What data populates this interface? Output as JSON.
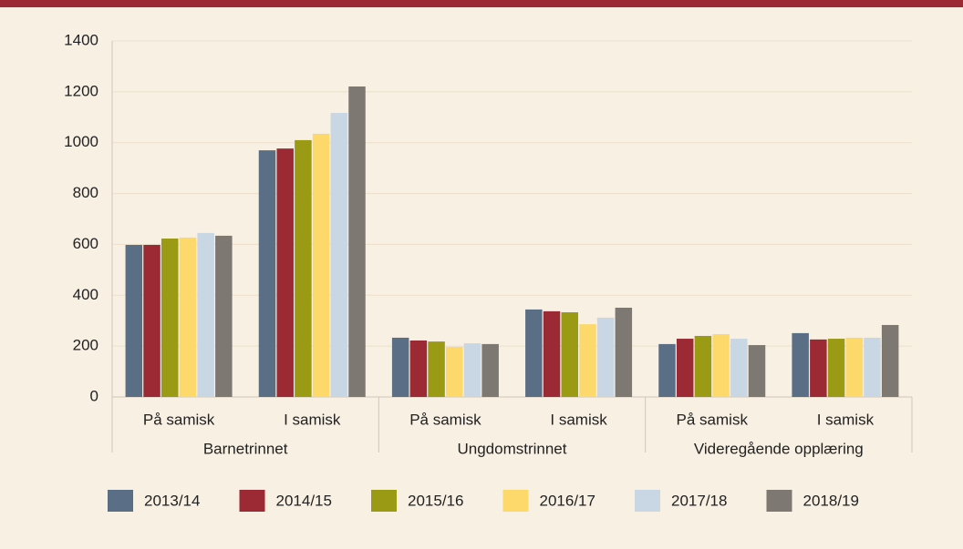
{
  "chart_data": {
    "type": "bar",
    "categories": [
      "På samisk",
      "I samisk",
      "På samisk",
      "I samisk",
      "På samisk",
      "I samisk"
    ],
    "groups": [
      "Barnetrinnet",
      "Ungdomstrinnet",
      "Videregående opplæring"
    ],
    "series": [
      {
        "name": "2013/14",
        "color": "#5a6e85",
        "values": [
          598,
          970,
          233,
          344,
          208,
          251
        ]
      },
      {
        "name": "2014/15",
        "color": "#9b2a35",
        "values": [
          598,
          977,
          222,
          337,
          229,
          226
        ]
      },
      {
        "name": "2015/16",
        "color": "#9a9a14",
        "values": [
          623,
          1010,
          218,
          333,
          240,
          229
        ]
      },
      {
        "name": "2016/17",
        "color": "#fdd86b",
        "values": [
          627,
          1035,
          197,
          286,
          247,
          233
        ]
      },
      {
        "name": "2017/18",
        "color": "#c9d6e3",
        "values": [
          645,
          1117,
          211,
          312,
          229,
          233
        ]
      },
      {
        "name": "2018/19",
        "color": "#7e7873",
        "values": [
          634,
          1221,
          208,
          351,
          204,
          283
        ]
      }
    ],
    "ylim": [
      0,
      1400
    ],
    "yticks": [
      0,
      200,
      400,
      600,
      800,
      1000,
      1200,
      1400
    ],
    "grid": true,
    "legend": "bottom"
  }
}
